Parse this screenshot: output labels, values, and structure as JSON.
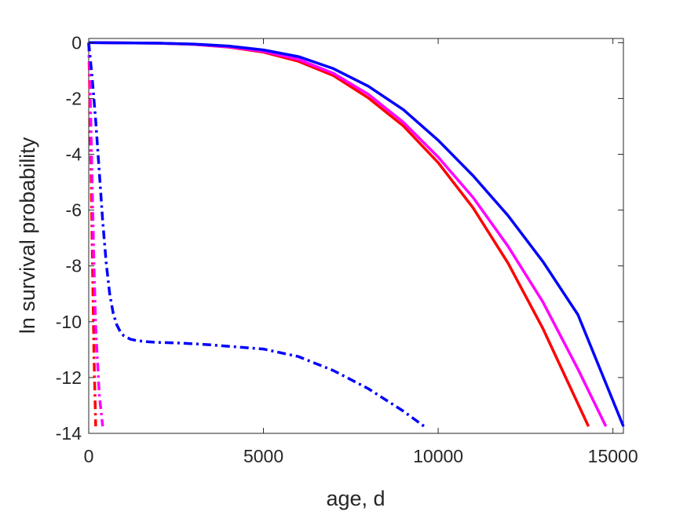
{
  "chart_data": {
    "type": "line",
    "title": "",
    "xlabel": "age, d",
    "ylabel": "ln survival probability",
    "xlim": [
      0,
      15300
    ],
    "ylim": [
      -14,
      0.15
    ],
    "xticks": [
      0,
      5000,
      10000,
      15000
    ],
    "xtick_labels": [
      "0",
      "5000",
      "10000",
      "15000"
    ],
    "yticks": [
      0,
      -2,
      -4,
      -6,
      -8,
      -10,
      -12,
      -14
    ],
    "ytick_labels": [
      "0",
      "-2",
      "-4",
      "-6",
      "-8",
      "-10",
      "-12",
      "-14"
    ],
    "grid": false,
    "legend": null,
    "series": [
      {
        "color": "#ff0000",
        "style": "solid",
        "x": [
          0,
          2000,
          3000,
          4000,
          5000,
          6000,
          7000,
          8000,
          9000,
          10000,
          11000,
          12000,
          13000,
          14300
        ],
        "y": [
          0,
          -0.02,
          -0.06,
          -0.16,
          -0.34,
          -0.67,
          -1.18,
          -1.98,
          -2.98,
          -4.3,
          -5.92,
          -7.9,
          -10.25,
          -13.75
        ]
      },
      {
        "color": "#ff00ff",
        "style": "solid",
        "x": [
          0,
          2000,
          3000,
          4000,
          5000,
          6000,
          7000,
          8000,
          9000,
          10000,
          11000,
          12000,
          13000,
          14000,
          14800
        ],
        "y": [
          0,
          -0.02,
          -0.06,
          -0.15,
          -0.31,
          -0.6,
          -1.1,
          -1.85,
          -2.85,
          -4.1,
          -5.55,
          -7.3,
          -9.3,
          -11.7,
          -13.75
        ]
      },
      {
        "color": "#0000ff",
        "style": "solid",
        "x": [
          0,
          2000,
          3000,
          4000,
          5000,
          6000,
          7000,
          8000,
          9000,
          10000,
          11000,
          12000,
          13000,
          14000,
          15300
        ],
        "y": [
          0,
          -0.02,
          -0.05,
          -0.12,
          -0.26,
          -0.5,
          -0.93,
          -1.56,
          -2.4,
          -3.5,
          -4.77,
          -6.2,
          -7.85,
          -9.75,
          -13.75
        ]
      },
      {
        "color": "#ff0000",
        "style": "dashdot",
        "x": [
          0,
          30,
          60,
          100,
          150,
          200
        ],
        "y": [
          0,
          -1.8,
          -4.2,
          -7.4,
          -11.2,
          -13.75
        ]
      },
      {
        "color": "#ff00ff",
        "style": "dashdot",
        "x": [
          0,
          30,
          60,
          100,
          150,
          200,
          300,
          400
        ],
        "y": [
          0,
          -1.0,
          -2.8,
          -5.2,
          -8.0,
          -10.2,
          -12.6,
          -13.75
        ]
      },
      {
        "color": "#0000ff",
        "style": "dashdot",
        "x": [
          0,
          100,
          200,
          300,
          400,
          500,
          600,
          700,
          800,
          900,
          1000,
          1200,
          1400,
          1700,
          2000,
          2500,
          3000,
          3500,
          4000,
          5000,
          6000,
          7000,
          8000,
          9000,
          9600
        ],
        "y": [
          0,
          -1.3,
          -2.8,
          -4.6,
          -6.4,
          -7.9,
          -9.0,
          -9.7,
          -10.1,
          -10.35,
          -10.5,
          -10.63,
          -10.68,
          -10.72,
          -10.74,
          -10.76,
          -10.79,
          -10.83,
          -10.88,
          -10.98,
          -11.25,
          -11.75,
          -12.4,
          -13.2,
          -13.75
        ]
      }
    ]
  }
}
